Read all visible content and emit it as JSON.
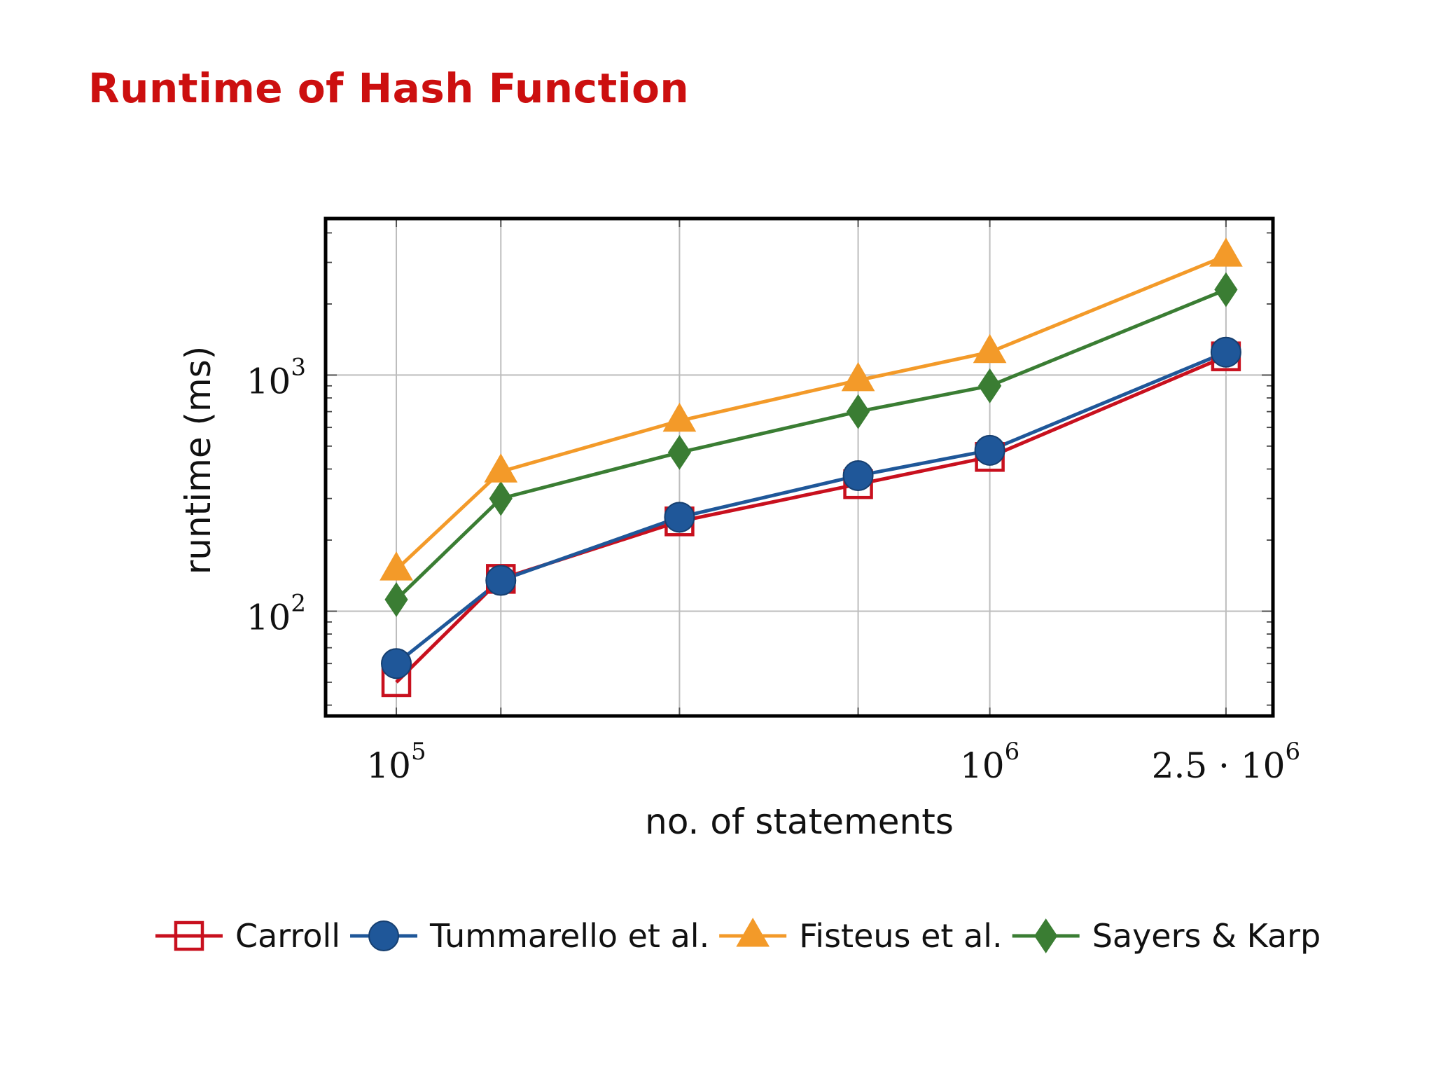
{
  "slide": {
    "title": "Runtime of Hash Function"
  },
  "chart_data": {
    "type": "line",
    "xlabel": "no. of statements",
    "ylabel": "runtime (ms)",
    "x_scale": "log",
    "y_scale": "log",
    "xlim": [
      76000,
      3000000
    ],
    "ylim": [
      36,
      4600
    ],
    "grid": true,
    "legend_position": "bottom",
    "x_ticks": [
      {
        "value": 100000,
        "base": "10",
        "exp": "5"
      },
      {
        "value": 1000000,
        "base": "10",
        "exp": "6"
      },
      {
        "value": 2500000,
        "base": "2.5 · 10",
        "exp": "6"
      }
    ],
    "x_gridlines": [
      100000,
      150000,
      300000,
      600000,
      1000000,
      2500000
    ],
    "y_ticks": [
      {
        "value": 100,
        "base": "10",
        "exp": "2"
      },
      {
        "value": 1000,
        "base": "10",
        "exp": "3"
      }
    ],
    "x": [
      100000,
      150000,
      300000,
      600000,
      1000000,
      2500000
    ],
    "series": [
      {
        "name": "Carroll",
        "color": "#c8101e",
        "marker": "square-open",
        "values": [
          50,
          137,
          240,
          345,
          450,
          1200
        ]
      },
      {
        "name": "Tummarello et al.",
        "color": "#1f5799",
        "marker": "circle",
        "values": [
          60,
          135,
          250,
          375,
          480,
          1250
        ]
      },
      {
        "name": "Fisteus et al.",
        "color": "#f39a29",
        "marker": "triangle",
        "values": [
          150,
          390,
          640,
          950,
          1250,
          3200
        ]
      },
      {
        "name": "Sayers & Karp",
        "color": "#3a7d33",
        "marker": "diamond",
        "values": [
          112,
          300,
          470,
          700,
          900,
          2300
        ]
      }
    ]
  }
}
